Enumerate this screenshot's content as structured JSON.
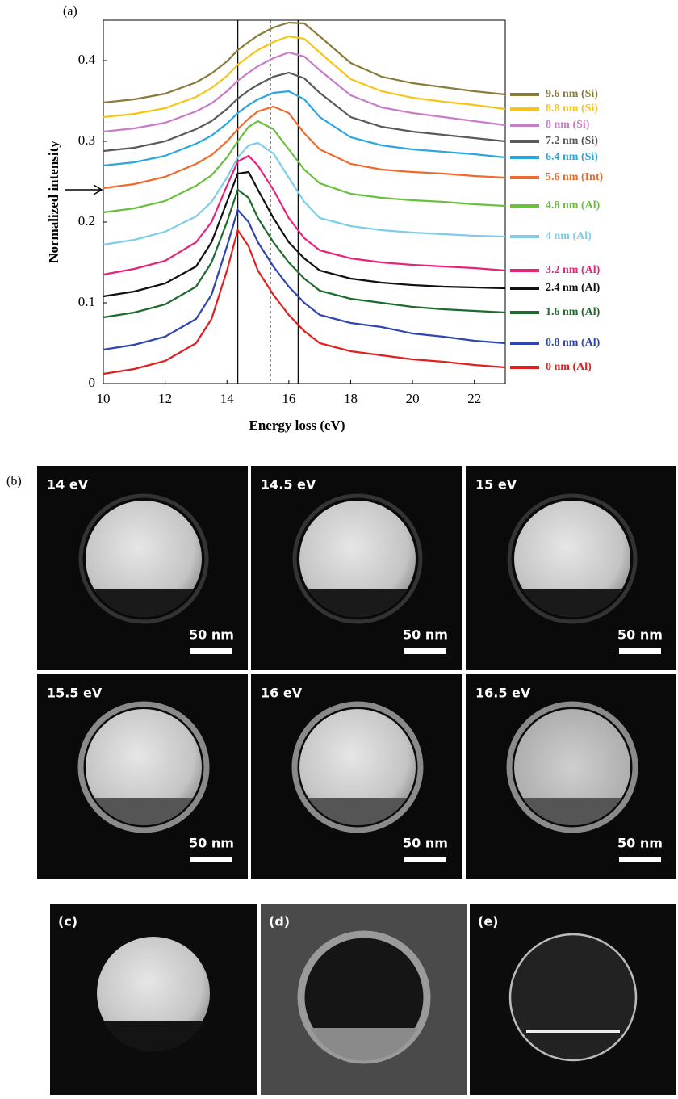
{
  "chart_data": {
    "type": "line",
    "label": "(a)",
    "xlabel": "Energy loss (eV)",
    "ylabel": "Normalized intensity",
    "x": [
      10,
      11,
      12,
      13,
      13.5,
      14,
      14.35,
      14.7,
      15,
      15.5,
      16,
      16.5,
      17,
      18,
      19,
      20,
      21,
      22,
      23
    ],
    "xlim": [
      10,
      23
    ],
    "ylim": [
      0,
      0.45
    ],
    "xticks": [
      10,
      12,
      14,
      16,
      18,
      20,
      22
    ],
    "yticks": [
      0,
      0.1,
      0.2,
      0.3,
      0.4
    ],
    "reference_lines": [
      {
        "x": 14.35,
        "style": "solid"
      },
      {
        "x": 15.4,
        "style": "dashed"
      },
      {
        "x": 16.3,
        "style": "solid"
      }
    ],
    "arrow_y": 0.24,
    "series": [
      {
        "name": "9.6 nm (Si)",
        "color": "#8a7d3c",
        "values": [
          0.348,
          0.352,
          0.359,
          0.373,
          0.384,
          0.399,
          0.413,
          0.423,
          0.431,
          0.441,
          0.447,
          0.446,
          0.43,
          0.397,
          0.38,
          0.372,
          0.367,
          0.362,
          0.358
        ]
      },
      {
        "name": "8.8 nm (Si)",
        "color": "#f5c518",
        "values": [
          0.33,
          0.334,
          0.341,
          0.355,
          0.366,
          0.381,
          0.395,
          0.405,
          0.413,
          0.423,
          0.43,
          0.427,
          0.41,
          0.377,
          0.362,
          0.354,
          0.349,
          0.345,
          0.34
        ]
      },
      {
        "name": "8 nm (Si)",
        "color": "#c77dc7",
        "values": [
          0.312,
          0.316,
          0.323,
          0.337,
          0.347,
          0.362,
          0.375,
          0.385,
          0.393,
          0.403,
          0.41,
          0.405,
          0.388,
          0.357,
          0.342,
          0.335,
          0.33,
          0.325,
          0.32
        ]
      },
      {
        "name": "7.2 nm (Si)",
        "color": "#5a5a5a",
        "values": [
          0.288,
          0.292,
          0.3,
          0.315,
          0.325,
          0.34,
          0.353,
          0.363,
          0.37,
          0.38,
          0.385,
          0.378,
          0.36,
          0.33,
          0.318,
          0.312,
          0.308,
          0.304,
          0.3
        ]
      },
      {
        "name": "6.4 nm (Si)",
        "color": "#2aa7e0",
        "values": [
          0.27,
          0.274,
          0.282,
          0.297,
          0.307,
          0.322,
          0.335,
          0.345,
          0.352,
          0.36,
          0.362,
          0.352,
          0.33,
          0.305,
          0.295,
          0.29,
          0.287,
          0.284,
          0.28
        ]
      },
      {
        "name": "5.6 nm (Int)",
        "color": "#f06a2a",
        "values": [
          0.242,
          0.247,
          0.256,
          0.272,
          0.283,
          0.3,
          0.315,
          0.328,
          0.337,
          0.343,
          0.335,
          0.31,
          0.29,
          0.272,
          0.265,
          0.262,
          0.26,
          0.257,
          0.255
        ]
      },
      {
        "name": "4.8 nm (Al)",
        "color": "#6abf3f",
        "values": [
          0.212,
          0.217,
          0.226,
          0.245,
          0.258,
          0.28,
          0.3,
          0.318,
          0.325,
          0.315,
          0.29,
          0.265,
          0.248,
          0.235,
          0.23,
          0.227,
          0.225,
          0.222,
          0.22
        ]
      },
      {
        "name": "4 nm (Al)",
        "color": "#7fcde8",
        "values": [
          0.172,
          0.178,
          0.188,
          0.207,
          0.225,
          0.255,
          0.28,
          0.295,
          0.298,
          0.285,
          0.255,
          0.225,
          0.205,
          0.195,
          0.19,
          0.187,
          0.185,
          0.183,
          0.182
        ]
      },
      {
        "name": "3.2 nm (Al)",
        "color": "#e8237a",
        "values": [
          0.135,
          0.142,
          0.152,
          0.175,
          0.2,
          0.245,
          0.275,
          0.282,
          0.27,
          0.24,
          0.205,
          0.18,
          0.165,
          0.155,
          0.15,
          0.147,
          0.145,
          0.143,
          0.14
        ]
      },
      {
        "name": "2.4 nm (Al)",
        "color": "#111111",
        "values": [
          0.108,
          0.114,
          0.124,
          0.145,
          0.175,
          0.225,
          0.26,
          0.262,
          0.24,
          0.205,
          0.175,
          0.155,
          0.14,
          0.13,
          0.125,
          0.122,
          0.12,
          0.119,
          0.118
        ]
      },
      {
        "name": "1.6 nm (Al)",
        "color": "#1e6b2e",
        "values": [
          0.082,
          0.088,
          0.098,
          0.12,
          0.15,
          0.2,
          0.24,
          0.23,
          0.205,
          0.175,
          0.15,
          0.13,
          0.115,
          0.105,
          0.1,
          0.095,
          0.092,
          0.09,
          0.088
        ]
      },
      {
        "name": "0.8 nm (Al)",
        "color": "#2f46b0",
        "values": [
          0.042,
          0.048,
          0.058,
          0.08,
          0.11,
          0.17,
          0.215,
          0.2,
          0.175,
          0.145,
          0.12,
          0.1,
          0.085,
          0.075,
          0.07,
          0.062,
          0.058,
          0.053,
          0.05
        ]
      },
      {
        "name": "0 nm (Al)",
        "color": "#e02020",
        "values": [
          0.012,
          0.018,
          0.028,
          0.05,
          0.08,
          0.14,
          0.19,
          0.17,
          0.14,
          0.11,
          0.085,
          0.065,
          0.05,
          0.04,
          0.035,
          0.03,
          0.027,
          0.023,
          0.02
        ]
      }
    ]
  },
  "images": {
    "label": "(b)",
    "panels": [
      {
        "energy": "14 eV",
        "scale_bar": "50 nm"
      },
      {
        "energy": "14.5 eV",
        "scale_bar": "50 nm"
      },
      {
        "energy": "15 eV",
        "scale_bar": "50 nm"
      },
      {
        "energy": "15.5 eV",
        "scale_bar": "50 nm"
      },
      {
        "energy": "16 eV",
        "scale_bar": "50 nm"
      },
      {
        "energy": "16.5 eV",
        "scale_bar": "50 nm"
      }
    ],
    "bottom_panels": [
      "(c)",
      "(d)",
      "(e)"
    ]
  }
}
